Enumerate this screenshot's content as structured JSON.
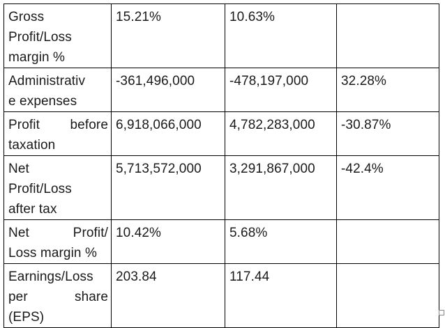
{
  "table": {
    "rows": [
      {
        "label_lines": [
          "Gross",
          "Profit/Loss",
          "margin %"
        ],
        "justify": [
          false,
          false,
          false
        ],
        "c1": "15.21%",
        "c2": "10.63%",
        "c3": ""
      },
      {
        "label_lines": [
          "Administrativ",
          "e expenses"
        ],
        "justify": [
          false,
          false
        ],
        "c1": "-361,496,000",
        "c2": "-478,197,000",
        "c3": "32.28%"
      },
      {
        "label_lines": [
          "Profit before",
          "taxation"
        ],
        "justify": [
          true,
          false
        ],
        "c1": "6,918,066,000",
        "c2": "4,782,283,000",
        "c3": "-30.87%"
      },
      {
        "label_lines": [
          "Net",
          "Profit/Loss",
          "after tax"
        ],
        "justify": [
          false,
          false,
          false
        ],
        "c1": "5,713,572,000",
        "c2": "3,291,867,000",
        "c3": "-42.4%"
      },
      {
        "label_lines": [
          "Net Profit/",
          "Loss margin %"
        ],
        "justify": [
          true,
          false
        ],
        "c1": "10.42%",
        "c2": "5.68%",
        "c3": ""
      },
      {
        "label_lines": [
          "Earnings/Loss",
          "per share",
          "(EPS)"
        ],
        "justify": [
          false,
          true,
          false
        ],
        "c1": "203.84",
        "c2": "117.44",
        "c3": ""
      }
    ]
  }
}
